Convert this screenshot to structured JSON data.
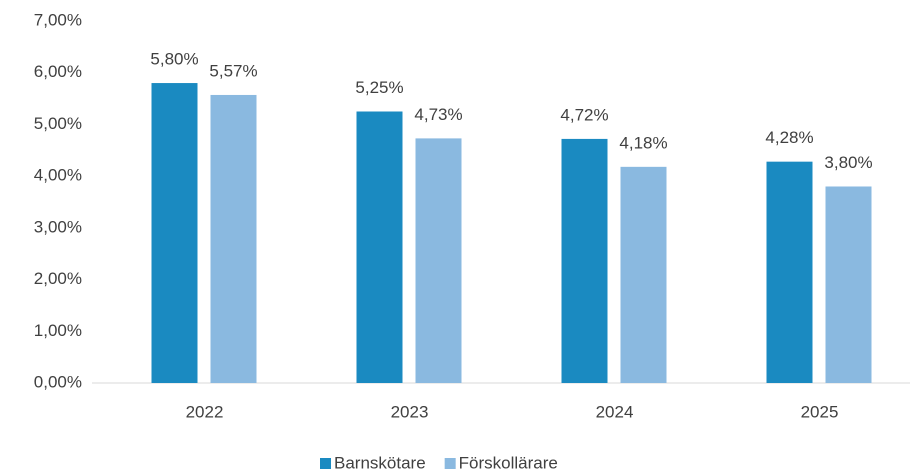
{
  "chart_data": {
    "type": "bar",
    "categories": [
      "2022",
      "2023",
      "2024",
      "2025"
    ],
    "series": [
      {
        "name": "Barnskötare",
        "color": "#1a8ac1",
        "values": [
          5.8,
          5.25,
          4.72,
          4.28
        ],
        "value_labels": [
          "5,80%",
          "5,25%",
          "4,72%",
          "4,28%"
        ]
      },
      {
        "name": "Förskollärare",
        "color": "#8ab9e0",
        "values": [
          5.57,
          4.73,
          4.18,
          3.8
        ],
        "value_labels": [
          "5,57%",
          "4,73%",
          "4,18%",
          "3,80%"
        ]
      }
    ],
    "ylim": [
      0,
      7
    ],
    "yticks": [
      {
        "value": 0,
        "label": "0,00%"
      },
      {
        "value": 1,
        "label": "1,00%"
      },
      {
        "value": 2,
        "label": "2,00%"
      },
      {
        "value": 3,
        "label": "3,00%"
      },
      {
        "value": 4,
        "label": "4,00%"
      },
      {
        "value": 5,
        "label": "5,00%"
      },
      {
        "value": 6,
        "label": "6,00%"
      },
      {
        "value": 7,
        "label": "7,00%"
      }
    ],
    "grid": false,
    "legend": "bottom"
  }
}
